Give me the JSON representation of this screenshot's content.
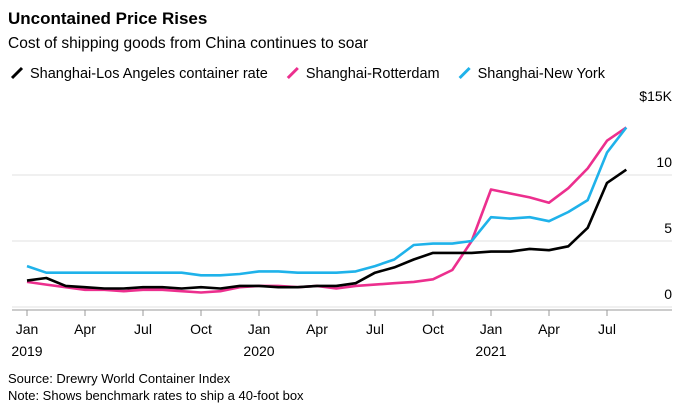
{
  "chart_data": {
    "type": "line",
    "title": "Uncontained Price Rises",
    "subtitle": "Cost of shipping goods from China continues to soar",
    "source": "Source: Drewry World Container Index",
    "note": "Note: Shows benchmark rates to ship a 40-foot box",
    "x": [
      "2019-01",
      "2019-02",
      "2019-03",
      "2019-04",
      "2019-05",
      "2019-06",
      "2019-07",
      "2019-08",
      "2019-09",
      "2019-10",
      "2019-11",
      "2019-12",
      "2020-01",
      "2020-02",
      "2020-03",
      "2020-04",
      "2020-05",
      "2020-06",
      "2020-07",
      "2020-08",
      "2020-09",
      "2020-10",
      "2020-11",
      "2020-12",
      "2021-01",
      "2021-02",
      "2021-03",
      "2021-04",
      "2021-05",
      "2021-06",
      "2021-07",
      "2021-08"
    ],
    "series": [
      {
        "name": "Shanghai-Los Angeles container rate",
        "color": "#000000",
        "values": [
          2.0,
          2.2,
          1.6,
          1.5,
          1.4,
          1.4,
          1.5,
          1.5,
          1.4,
          1.5,
          1.4,
          1.6,
          1.6,
          1.5,
          1.5,
          1.6,
          1.6,
          1.8,
          2.6,
          3.0,
          3.6,
          4.1,
          4.1,
          4.1,
          4.2,
          4.2,
          4.4,
          4.3,
          4.6,
          6.0,
          9.4,
          10.4
        ]
      },
      {
        "name": "Shanghai-Rotterdam",
        "color": "#ec2f8e",
        "values": [
          1.9,
          1.7,
          1.5,
          1.3,
          1.3,
          1.2,
          1.3,
          1.3,
          1.2,
          1.1,
          1.2,
          1.5,
          1.6,
          1.6,
          1.5,
          1.6,
          1.4,
          1.6,
          1.7,
          1.8,
          1.9,
          2.1,
          2.8,
          5.0,
          8.9,
          8.6,
          8.3,
          7.9,
          9.0,
          10.5,
          12.6,
          13.6
        ]
      },
      {
        "name": "Shanghai-New York",
        "color": "#1fb2ea",
        "values": [
          3.1,
          2.6,
          2.6,
          2.6,
          2.6,
          2.6,
          2.6,
          2.6,
          2.6,
          2.4,
          2.4,
          2.5,
          2.7,
          2.7,
          2.6,
          2.6,
          2.6,
          2.7,
          3.1,
          3.6,
          4.7,
          4.8,
          4.8,
          5.0,
          6.8,
          6.7,
          6.8,
          6.5,
          7.2,
          8.1,
          11.7,
          13.6
        ]
      }
    ],
    "xticks": [
      {
        "value": "2019-01",
        "label": "Jan"
      },
      {
        "value": "2019-04",
        "label": "Apr"
      },
      {
        "value": "2019-07",
        "label": "Jul"
      },
      {
        "value": "2019-10",
        "label": "Oct"
      },
      {
        "value": "2020-01",
        "label": "Jan"
      },
      {
        "value": "2020-04",
        "label": "Apr"
      },
      {
        "value": "2020-07",
        "label": "Jul"
      },
      {
        "value": "2020-10",
        "label": "Oct"
      },
      {
        "value": "2021-01",
        "label": "Jan"
      },
      {
        "value": "2021-04",
        "label": "Apr"
      },
      {
        "value": "2021-07",
        "label": "Jul"
      }
    ],
    "year_labels": [
      {
        "value": "2019-01",
        "label": "2019"
      },
      {
        "value": "2020-01",
        "label": "2020"
      },
      {
        "value": "2021-01",
        "label": "2021"
      }
    ],
    "ylim": [
      0,
      15
    ],
    "yticks": [
      0,
      5,
      10,
      {
        "value": 15,
        "label": "$15K"
      }
    ],
    "grid": true
  }
}
